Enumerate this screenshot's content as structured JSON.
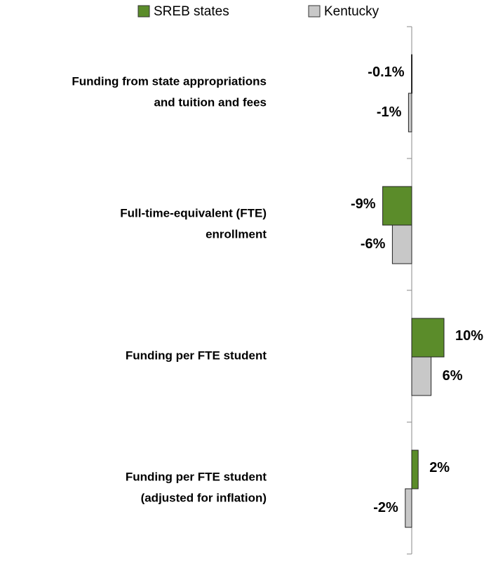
{
  "chart_data": {
    "type": "hbar",
    "categories": [
      [
        "Funding from state appropriations",
        "and tuition and fees"
      ],
      [
        "Full-time-equivalent (FTE)",
        "enrollment"
      ],
      [
        "Funding per FTE student"
      ],
      [
        "Funding per FTE student",
        "(adjusted for inflation)"
      ]
    ],
    "series": [
      {
        "name": "SREB states",
        "color": "#5b8c2a",
        "values": [
          -0.1,
          -9,
          10,
          2
        ],
        "value_labels": [
          "-0.1%",
          "-9%",
          "10%",
          "2%"
        ]
      },
      {
        "name": "Kentucky",
        "color": "#c8c8c8",
        "values": [
          -1,
          -6,
          6,
          -2
        ],
        "value_labels": [
          "-1%",
          "-6%",
          "6%",
          "-2%"
        ]
      }
    ],
    "xlim": [
      -20,
      20
    ],
    "legend": "top"
  }
}
